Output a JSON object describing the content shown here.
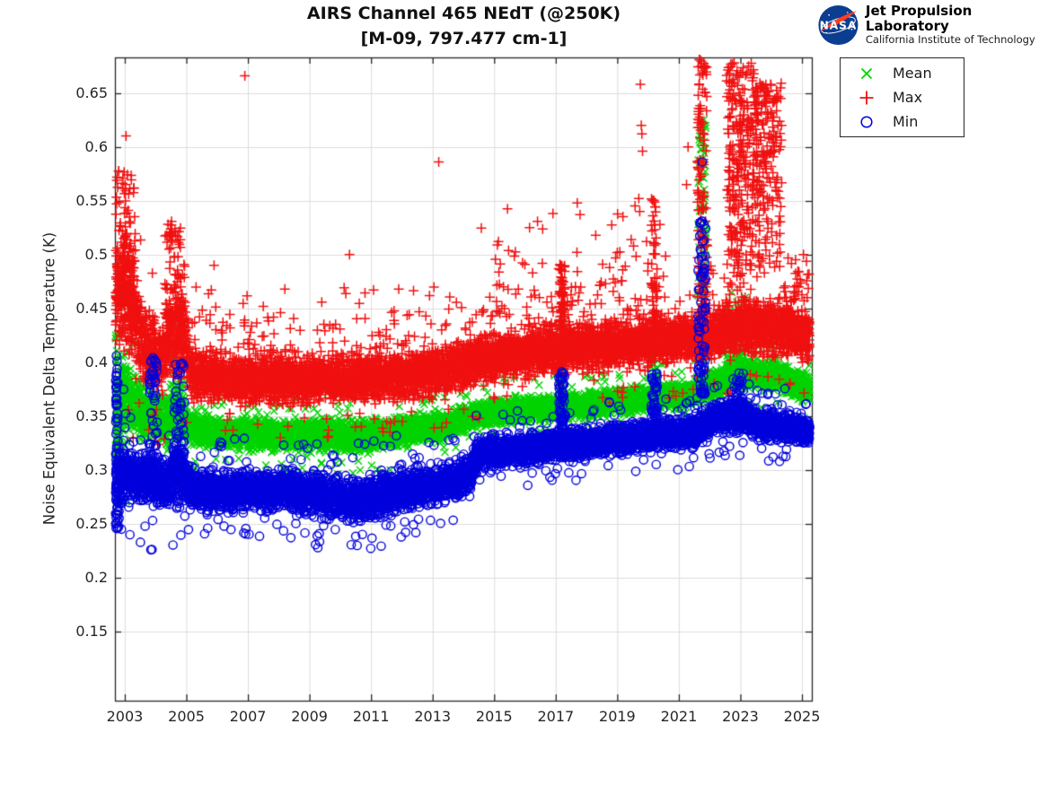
{
  "header": {
    "title": "AIRS Channel 465 NEdT (@250K)",
    "subtitle": "[M-09, 797.477 cm-1]"
  },
  "logo": {
    "insignia_label": "NASA",
    "org_name": "Jet Propulsion Laboratory",
    "org_sub": "California Institute of Technology",
    "insignia_blue": "#0b3d91",
    "swoosh_red": "#fc3d21"
  },
  "legend": {
    "position": "outside-top-right"
  },
  "chart_data": {
    "type": "scatter",
    "title": "AIRS Channel 465 NEdT (@250K)",
    "subtitle": "[M-09, 797.477 cm-1]",
    "xlabel": "",
    "ylabel": "Noise Equivalent Delta Temperature (K)",
    "xlim": [
      2002.68,
      2025.32
    ],
    "ylim": [
      0.086,
      0.683
    ],
    "xticks": [
      2003,
      2005,
      2007,
      2009,
      2011,
      2013,
      2015,
      2017,
      2019,
      2021,
      2023,
      2025
    ],
    "yticks": [
      0.15,
      0.2,
      0.25,
      0.3,
      0.35,
      0.4,
      0.45,
      0.5,
      0.55,
      0.6,
      0.65
    ],
    "ytick_labels": [
      "0.15",
      "0.2",
      "0.25",
      "0.3",
      "0.35",
      "0.4",
      "0.45",
      "0.5",
      "0.55",
      "0.6",
      "0.65"
    ],
    "grid": true,
    "grid_color": "#dcdcdc",
    "axis_color": "#262626",
    "series": [
      {
        "name": "Mean",
        "marker": "x",
        "color": "#00d400",
        "points_per_year": 330,
        "band": [
          [
            2002.7,
            0.34,
            0.05
          ],
          [
            2003.0,
            0.372,
            0.045
          ],
          [
            2003.35,
            0.358,
            0.028
          ],
          [
            2004.0,
            0.348,
            0.024
          ],
          [
            2004.4,
            0.345,
            0.025
          ],
          [
            2004.75,
            0.362,
            0.035
          ],
          [
            2005.1,
            0.34,
            0.018
          ],
          [
            2005.6,
            0.335,
            0.014
          ],
          [
            2008.0,
            0.333,
            0.014
          ],
          [
            2010.5,
            0.332,
            0.015
          ],
          [
            2012.0,
            0.336,
            0.014
          ],
          [
            2013.5,
            0.343,
            0.013
          ],
          [
            2014.4,
            0.351,
            0.012
          ],
          [
            2016.0,
            0.356,
            0.012
          ],
          [
            2018.0,
            0.36,
            0.012
          ],
          [
            2020.0,
            0.366,
            0.012
          ],
          [
            2021.5,
            0.372,
            0.012
          ],
          [
            2022.2,
            0.38,
            0.014
          ],
          [
            2023.0,
            0.39,
            0.015
          ],
          [
            2024.0,
            0.389,
            0.014
          ],
          [
            2025.25,
            0.376,
            0.013
          ]
        ],
        "stripes": [
          {
            "x0": 2002.7,
            "x1": 2002.8,
            "lo": 0.27,
            "hi": 0.43,
            "n": 40,
            "pow": 1.0
          },
          {
            "x0": 2017.1,
            "x1": 2017.3,
            "lo": 0.37,
            "hi": 0.437,
            "n": 55,
            "pow": 1.2
          },
          {
            "x0": 2020.1,
            "x1": 2020.3,
            "lo": 0.37,
            "hi": 0.43,
            "n": 45,
            "pow": 1.2
          },
          {
            "x0": 2021.62,
            "x1": 2021.88,
            "lo": 0.4,
            "hi": 0.632,
            "n": 90,
            "pow": 1.1
          },
          {
            "x0": 2022.55,
            "x1": 2023.4,
            "lo": 0.4,
            "hi": 0.465,
            "n": 50,
            "pow": 1.5
          }
        ],
        "outliers": [
          [
            2004.68,
            0.401
          ],
          [
            2004.72,
            0.396
          ],
          [
            2021.7,
            0.585
          ],
          [
            2021.74,
            0.612
          ]
        ]
      },
      {
        "name": "Max",
        "marker": "+",
        "color": "#f01010",
        "points_per_year": 330,
        "band": [
          [
            2002.7,
            0.455,
            0.05
          ],
          [
            2003.05,
            0.47,
            0.055
          ],
          [
            2003.4,
            0.435,
            0.045
          ],
          [
            2003.8,
            0.408,
            0.035
          ],
          [
            2004.15,
            0.402,
            0.032
          ],
          [
            2004.5,
            0.425,
            0.045
          ],
          [
            2004.85,
            0.425,
            0.045
          ],
          [
            2005.2,
            0.39,
            0.024
          ],
          [
            2006.0,
            0.386,
            0.022
          ],
          [
            2009.0,
            0.384,
            0.022
          ],
          [
            2011.0,
            0.385,
            0.022
          ],
          [
            2013.0,
            0.39,
            0.022
          ],
          [
            2014.5,
            0.402,
            0.022
          ],
          [
            2016.0,
            0.409,
            0.022
          ],
          [
            2018.0,
            0.414,
            0.022
          ],
          [
            2020.0,
            0.419,
            0.022
          ],
          [
            2021.5,
            0.423,
            0.023
          ],
          [
            2022.3,
            0.429,
            0.025
          ],
          [
            2023.2,
            0.433,
            0.025
          ],
          [
            2024.2,
            0.431,
            0.025
          ],
          [
            2025.25,
            0.424,
            0.025
          ]
        ],
        "stripes": [
          {
            "x0": 2002.7,
            "x1": 2003.35,
            "lo": 0.455,
            "hi": 0.578,
            "n": 150,
            "pow": 1.8
          },
          {
            "x0": 2004.3,
            "x1": 2004.55,
            "lo": 0.44,
            "hi": 0.532,
            "n": 40,
            "pow": 1.4
          },
          {
            "x0": 2004.6,
            "x1": 2004.95,
            "lo": 0.44,
            "hi": 0.525,
            "n": 45,
            "pow": 1.4
          },
          {
            "x0": 2005.2,
            "x1": 2014.4,
            "lo": 0.41,
            "hi": 0.47,
            "n": 80,
            "pow": 2.2
          },
          {
            "x0": 2014.5,
            "x1": 2017.05,
            "lo": 0.435,
            "hi": 0.545,
            "n": 45,
            "pow": 2.0
          },
          {
            "x0": 2017.1,
            "x1": 2017.3,
            "lo": 0.43,
            "hi": 0.492,
            "n": 70,
            "pow": 1.2
          },
          {
            "x0": 2017.35,
            "x1": 2021.4,
            "lo": 0.435,
            "hi": 0.55,
            "n": 55,
            "pow": 2.2
          },
          {
            "x0": 2020.1,
            "x1": 2020.3,
            "lo": 0.43,
            "hi": 0.552,
            "n": 55,
            "pow": 1.5
          },
          {
            "x0": 2021.6,
            "x1": 2021.92,
            "lo": 0.44,
            "hi": 0.682,
            "n": 140,
            "pow": 1.2
          },
          {
            "x0": 2022.55,
            "x1": 2023.45,
            "lo": 0.45,
            "hi": 0.678,
            "n": 280,
            "pow": 0.75
          },
          {
            "x0": 2023.45,
            "x1": 2024.35,
            "lo": 0.465,
            "hi": 0.66,
            "n": 210,
            "pow": 0.55
          },
          {
            "x0": 2024.4,
            "x1": 2025.25,
            "lo": 0.435,
            "hi": 0.5,
            "n": 35,
            "pow": 2.0
          }
        ],
        "outliers": [
          [
            2006.9,
            0.666
          ],
          [
            2013.2,
            0.586
          ],
          [
            2019.75,
            0.658
          ],
          [
            2019.78,
            0.62
          ],
          [
            2019.8,
            0.612
          ],
          [
            2019.82,
            0.596
          ],
          [
            2019.7,
            0.552
          ],
          [
            2019.73,
            0.54
          ],
          [
            2018.3,
            0.518
          ],
          [
            2019.0,
            0.502
          ],
          [
            2018.75,
            0.488
          ],
          [
            2019.95,
            0.512
          ],
          [
            2020.0,
            0.492
          ],
          [
            2010.3,
            0.5
          ],
          [
            2005.9,
            0.49
          ],
          [
            2008.2,
            0.468
          ],
          [
            2011.9,
            0.468
          ],
          [
            2012.9,
            0.462
          ],
          [
            2009.4,
            0.456
          ],
          [
            2007.5,
            0.452
          ],
          [
            2015.3,
            0.47
          ],
          [
            2016.15,
            0.525
          ],
          [
            2017.7,
            0.548
          ],
          [
            2021.3,
            0.6
          ],
          [
            2021.25,
            0.565
          ],
          [
            2024.55,
            0.497
          ],
          [
            2025.05,
            0.5
          ],
          [
            2024.9,
            0.47
          ]
        ]
      },
      {
        "name": "Min",
        "marker": "o",
        "color": "#0000dd",
        "points_per_year": 330,
        "band": [
          [
            2002.7,
            0.285,
            0.04
          ],
          [
            2003.0,
            0.298,
            0.028
          ],
          [
            2003.4,
            0.29,
            0.022
          ],
          [
            2004.0,
            0.295,
            0.03
          ],
          [
            2004.35,
            0.285,
            0.02
          ],
          [
            2004.75,
            0.298,
            0.038
          ],
          [
            2005.15,
            0.282,
            0.02
          ],
          [
            2006.0,
            0.28,
            0.018
          ],
          [
            2007.5,
            0.282,
            0.018
          ],
          [
            2009.0,
            0.279,
            0.02
          ],
          [
            2010.5,
            0.272,
            0.02
          ],
          [
            2012.0,
            0.28,
            0.02
          ],
          [
            2013.5,
            0.289,
            0.018
          ],
          [
            2014.2,
            0.294,
            0.018
          ],
          [
            2014.45,
            0.315,
            0.015
          ],
          [
            2016.0,
            0.32,
            0.014
          ],
          [
            2018.0,
            0.325,
            0.014
          ],
          [
            2020.0,
            0.331,
            0.014
          ],
          [
            2021.5,
            0.336,
            0.014
          ],
          [
            2022.2,
            0.349,
            0.015
          ],
          [
            2022.9,
            0.352,
            0.016
          ],
          [
            2023.6,
            0.342,
            0.014
          ],
          [
            2024.6,
            0.34,
            0.013
          ],
          [
            2025.25,
            0.335,
            0.013
          ]
        ],
        "stripes": [
          {
            "x0": 2002.7,
            "x1": 2002.78,
            "lo": 0.245,
            "hi": 0.41,
            "n": 55,
            "pow": 1.0
          },
          {
            "x0": 2003.8,
            "x1": 2004.05,
            "lo": 0.285,
            "hi": 0.405,
            "n": 65,
            "pow": 1.3
          },
          {
            "x0": 2004.6,
            "x1": 2004.95,
            "lo": 0.29,
            "hi": 0.4,
            "n": 55,
            "pow": 1.3
          },
          {
            "x0": 2017.1,
            "x1": 2017.3,
            "lo": 0.335,
            "hi": 0.392,
            "n": 55,
            "pow": 1.1
          },
          {
            "x0": 2020.1,
            "x1": 2020.3,
            "lo": 0.335,
            "hi": 0.39,
            "n": 48,
            "pow": 1.1
          },
          {
            "x0": 2021.62,
            "x1": 2021.88,
            "lo": 0.37,
            "hi": 0.532,
            "n": 85,
            "pow": 1.2
          },
          {
            "x0": 2022.7,
            "x1": 2023.1,
            "lo": 0.355,
            "hi": 0.392,
            "n": 40,
            "pow": 1.3
          }
        ],
        "outliers": [
          [
            2021.76,
            0.586
          ],
          [
            2021.7,
            0.505
          ],
          [
            2010.6,
            0.253
          ],
          [
            2011.3,
            0.256
          ],
          [
            2002.72,
            0.246
          ]
        ]
      }
    ]
  }
}
